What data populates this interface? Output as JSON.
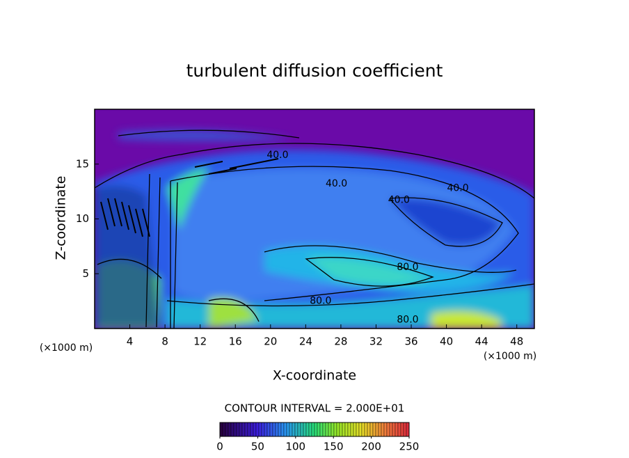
{
  "chart_data": {
    "type": "contour",
    "title": "turbulent diffusion coefficient",
    "x_label": "X-coordinate",
    "y_label": "Z-coordinate",
    "x_unit": "(×1000 m)",
    "y_unit": "(×1000 m)",
    "xlim": [
      0,
      50
    ],
    "xticks": [
      4,
      8,
      12,
      16,
      20,
      24,
      28,
      32,
      36,
      40,
      44,
      48
    ],
    "ylim": [
      0,
      20
    ],
    "yticks": [
      5,
      10,
      15
    ],
    "contour_interval": "CONTOUR INTERVAL = 2.000E+01",
    "contour_labels": [
      {
        "x": 20.8,
        "y": 15.8,
        "value": 40,
        "label": "40.0"
      },
      {
        "x": 27.5,
        "y": 13.2,
        "value": 40,
        "label": "40.0"
      },
      {
        "x": 34.6,
        "y": 11.7,
        "value": 40,
        "label": "40.0"
      },
      {
        "x": 41.3,
        "y": 12.8,
        "value": 40,
        "label": "40.0"
      },
      {
        "x": 35.6,
        "y": 5.6,
        "value": 80,
        "label": "80.0"
      },
      {
        "x": 25.7,
        "y": 2.5,
        "value": 80,
        "label": "80.0"
      },
      {
        "x": 35.6,
        "y": 0.8,
        "value": 80,
        "label": "80.0"
      }
    ],
    "colorbar": {
      "lim": [
        0,
        250
      ],
      "ticks": [
        0,
        50,
        100,
        150,
        200,
        250
      ]
    }
  }
}
